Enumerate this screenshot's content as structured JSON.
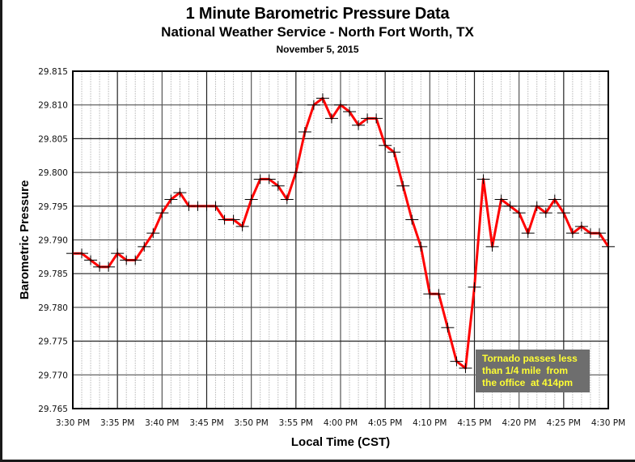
{
  "header": {
    "title": "1 Minute Barometric Pressure Data",
    "subtitle": "National Weather Service - North Fort Worth, TX",
    "date": "November 5, 2015"
  },
  "colors": {
    "line": "#ff0000",
    "marker": "#000000",
    "annotation_bg": "#6e6e6e",
    "annotation_text": "#ffff33",
    "major_grid": "#000000",
    "minor_grid": "#c8c8c8"
  },
  "annotation": {
    "lines": [
      "Tornado passes less",
      "than 1/4 mile  from",
      "the office  at 414pm"
    ]
  },
  "chart_data": {
    "type": "line",
    "title": "1 Minute Barometric Pressure Data",
    "subtitle": "National Weather Service - North Fort Worth, TX",
    "date": "November 5, 2015",
    "xlabel": "Local Time (CST)",
    "ylabel": "Barometric Pressure",
    "ylim": [
      29.765,
      29.815
    ],
    "y_ticks": [
      "29.765",
      "29.770",
      "29.775",
      "29.780",
      "29.785",
      "29.790",
      "29.795",
      "29.800",
      "29.805",
      "29.810",
      "29.815"
    ],
    "x_ticks": [
      "3:30 PM",
      "3:35 PM",
      "3:40 PM",
      "3:45 PM",
      "3:50 PM",
      "3:55 PM",
      "4:00 PM",
      "4:05 PM",
      "4:10 PM",
      "4:15 PM",
      "4:20 PM",
      "4:25 PM",
      "4:30 PM"
    ],
    "grid": true,
    "legend": "none",
    "annotations": [
      {
        "text": "Tornado passes less than 1/4 mile from the office at 414pm",
        "x": "4:15 PM",
        "y": 29.77
      }
    ],
    "series": [
      {
        "name": "Barometric Pressure",
        "x": [
          "3:30",
          "3:31",
          "3:32",
          "3:33",
          "3:34",
          "3:35",
          "3:36",
          "3:37",
          "3:38",
          "3:39",
          "3:40",
          "3:41",
          "3:42",
          "3:43",
          "3:44",
          "3:45",
          "3:46",
          "3:47",
          "3:48",
          "3:49",
          "3:50",
          "3:51",
          "3:52",
          "3:53",
          "3:54",
          "3:55",
          "3:56",
          "3:57",
          "3:58",
          "3:59",
          "4:00",
          "4:01",
          "4:02",
          "4:03",
          "4:04",
          "4:05",
          "4:06",
          "4:07",
          "4:08",
          "4:09",
          "4:10",
          "4:11",
          "4:12",
          "4:13",
          "4:14",
          "4:15",
          "4:16",
          "4:17",
          "4:18",
          "4:19",
          "4:20",
          "4:21",
          "4:22",
          "4:23",
          "4:24",
          "4:25",
          "4:26",
          "4:27",
          "4:28",
          "4:29",
          "4:30"
        ],
        "values": [
          29.788,
          29.788,
          29.787,
          29.786,
          29.786,
          29.788,
          29.787,
          29.787,
          29.789,
          29.791,
          29.794,
          29.796,
          29.797,
          29.795,
          29.795,
          29.795,
          29.795,
          29.793,
          29.793,
          29.792,
          29.796,
          29.799,
          29.799,
          29.798,
          29.796,
          29.8,
          29.806,
          29.81,
          29.811,
          29.808,
          29.81,
          29.809,
          29.807,
          29.808,
          29.808,
          29.804,
          29.803,
          29.798,
          29.793,
          29.789,
          29.782,
          29.782,
          29.777,
          29.772,
          29.771,
          29.783,
          29.799,
          29.789,
          29.796,
          29.795,
          29.794,
          29.791,
          29.795,
          29.794,
          29.796,
          29.794,
          29.791,
          29.792,
          29.791,
          29.791,
          29.789
        ]
      }
    ]
  }
}
